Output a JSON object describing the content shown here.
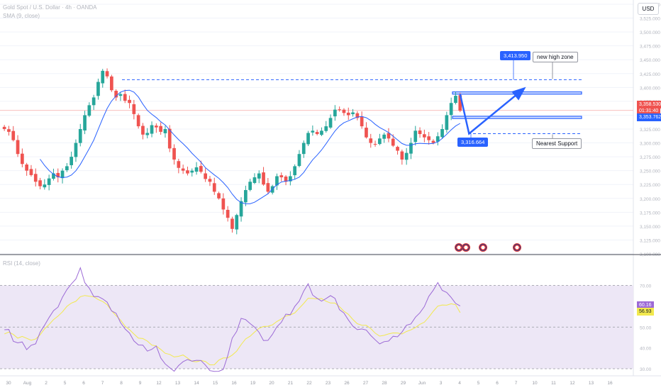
{
  "header": {
    "title": "Gold Spot / U.S. Dollar · 4h · OANDA",
    "sma_legend": "SMA (9, close)",
    "rsi_legend": "RSI (14, close)",
    "currency_button": "USD"
  },
  "colors": {
    "up": "#26a69a",
    "down": "#ef5350",
    "sma": "#2962ff",
    "rsi": "#9c6ad6",
    "rsi_ma": "#f2e94e",
    "zone": "#2962ff",
    "rsi_band": "#ede7f6"
  },
  "annotations": {
    "target_label": "3,413.950",
    "support_label": "3,316.664",
    "new_high_zone": "new high zone",
    "nearest_support": "Nearest Support"
  },
  "price_tags": {
    "last_price": "3,358.530",
    "countdown": "01:31:40",
    "sma_value": "3,353.762"
  },
  "rsi_tags": {
    "rsi_value": "60.16",
    "rsi_ma_value": "56.93"
  },
  "chart_data": [
    {
      "type": "candlestick",
      "title": "Gold Spot / U.S. Dollar · 4h · OANDA",
      "ylim": [
        3100,
        3550
      ],
      "y_ticks": [
        3100,
        3125,
        3150,
        3175,
        3200,
        3225,
        3250,
        3275,
        3300,
        3325,
        3350,
        3375,
        3400,
        3425,
        3450,
        3475,
        3500,
        3525,
        3550
      ],
      "y_tick_labels": [
        "3,100.000",
        "3,125.000",
        "3,150.000",
        "3,175.000",
        "3,200.000",
        "3,225.000",
        "3,250.000",
        "3,275.000",
        "3,300.000",
        "3,325.000",
        "3,350.000",
        "3,375.000",
        "3,400.000",
        "3,425.000",
        "3,450.000",
        "3,475.000",
        "3,500.000",
        "3,525.000",
        "3,550.000"
      ],
      "x_tick_labels": [
        "30",
        "Aug",
        "2",
        "5",
        "6",
        "7",
        "8",
        "9",
        "12",
        "13",
        "14",
        "15",
        "16",
        "19",
        "20",
        "21",
        "22",
        "23",
        "26",
        "27",
        "28",
        "29",
        "Jun",
        "3",
        "4",
        "5",
        "6",
        "7",
        "10",
        "11",
        "12",
        "13",
        "16"
      ],
      "close_path": [
        3325,
        3320,
        3305,
        3280,
        3262,
        3250,
        3242,
        3230,
        3222,
        3225,
        3236,
        3245,
        3238,
        3250,
        3258,
        3275,
        3300,
        3325,
        3350,
        3368,
        3382,
        3410,
        3430,
        3420,
        3395,
        3382,
        3388,
        3376,
        3372,
        3352,
        3330,
        3315,
        3318,
        3332,
        3328,
        3320,
        3325,
        3290,
        3270,
        3255,
        3250,
        3245,
        3250,
        3256,
        3248,
        3235,
        3230,
        3212,
        3200,
        3180,
        3165,
        3145,
        3170,
        3195,
        3215,
        3230,
        3238,
        3245,
        3225,
        3212,
        3222,
        3240,
        3238,
        3230,
        3240,
        3258,
        3280,
        3300,
        3318,
        3322,
        3316,
        3322,
        3330,
        3345,
        3360,
        3360,
        3354,
        3350,
        3355,
        3345,
        3330,
        3310,
        3300,
        3298,
        3308,
        3315,
        3308,
        3295,
        3286,
        3270,
        3282,
        3300,
        3322,
        3316,
        3310,
        3305,
        3300,
        3312,
        3325,
        3350,
        3372,
        3385,
        3358
      ],
      "sma_period": 9,
      "levels": [
        {
          "name": "new high zone",
          "value": 3413.95
        },
        {
          "name": "Nearest Support",
          "value": 3316.664
        }
      ],
      "zones": [
        {
          "from": 3388,
          "to": 3392
        },
        {
          "from": 3344,
          "to": 3348
        }
      ],
      "projection": [
        {
          "bar": 102,
          "value": 3388
        },
        {
          "bar": 104,
          "value": 3316.664
        },
        {
          "bar": 116,
          "value": 3396
        }
      ],
      "last_price": 3358.53
    },
    {
      "type": "line",
      "title": "RSI (14, close)",
      "ylim": [
        30,
        78
      ],
      "y_ticks": [
        30,
        40,
        50,
        60,
        70
      ],
      "y_tick_labels": [
        "30.00",
        "40.00",
        "50.00",
        "60.00",
        "70.00"
      ],
      "bands": [
        30,
        50,
        70
      ],
      "rsi_anchors": [
        50,
        44,
        40,
        44,
        52,
        60,
        70,
        78,
        65,
        62,
        58,
        52,
        44,
        38,
        40,
        32,
        30,
        36,
        33,
        30,
        26,
        45,
        55,
        50,
        42,
        48,
        55,
        62,
        70,
        62,
        66,
        58,
        52,
        48,
        46,
        42,
        44,
        50,
        56,
        64,
        70,
        66,
        60
      ],
      "rsi_ma_anchors": [
        48,
        46,
        44,
        46,
        50,
        56,
        62,
        66,
        64,
        60,
        56,
        52,
        46,
        42,
        40,
        38,
        36,
        35,
        33,
        32,
        34,
        38,
        44,
        48,
        50,
        52,
        55,
        60,
        64,
        64,
        62,
        58,
        54,
        50,
        48,
        46,
        46,
        48,
        52,
        56,
        60,
        62,
        61
      ],
      "last_rsi": 60.16,
      "last_rsi_ma": 56.93
    }
  ]
}
